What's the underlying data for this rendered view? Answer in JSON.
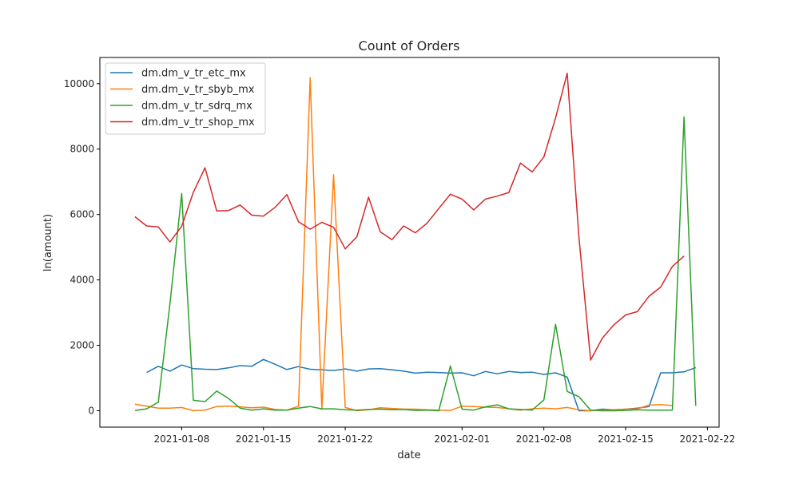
{
  "chart_data": {
    "type": "line",
    "title": "Count of Orders",
    "xlabel": "date",
    "ylabel": "ln(amount)",
    "x_start_date": "2021-01-04",
    "xlim": [
      "2021-01-01",
      "2021-02-23"
    ],
    "ylim": [
      -500,
      10800
    ],
    "x_ticks": [
      "2021-01-08",
      "2021-01-15",
      "2021-01-22",
      "2021-02-01",
      "2021-02-08",
      "2021-02-15",
      "2021-02-22"
    ],
    "y_ticks": [
      0,
      2000,
      4000,
      6000,
      8000,
      10000
    ],
    "grid": false,
    "legend_position": "top-left",
    "series": [
      {
        "name": "dm.dm_v_tr_etc_mx",
        "color": "#1f77b4",
        "start_date": "2021-01-05",
        "values": [
          1170,
          1360,
          1210,
          1400,
          1290,
          1270,
          1260,
          1310,
          1380,
          1360,
          1570,
          1420,
          1260,
          1350,
          1270,
          1250,
          1230,
          1280,
          1210,
          1280,
          1290,
          1250,
          1210,
          1150,
          1180,
          1170,
          1150,
          1160,
          1070,
          1200,
          1130,
          1200,
          1170,
          1180,
          1110,
          1160,
          1030,
          0,
          0,
          50,
          30,
          50,
          80,
          130,
          1160,
          1160,
          1190,
          1320
        ]
      },
      {
        "name": "dm.dm_v_tr_sbyb_mx",
        "color": "#ff7f0e",
        "start_date": "2021-01-04",
        "values": [
          200,
          140,
          80,
          80,
          100,
          0,
          20,
          130,
          140,
          120,
          90,
          110,
          40,
          20,
          140,
          10180,
          40,
          7220,
          100,
          0,
          30,
          90,
          70,
          50,
          50,
          30,
          20,
          10,
          140,
          130,
          110,
          100,
          60,
          20,
          60,
          80,
          60,
          100,
          30,
          0,
          20,
          30,
          50,
          60,
          170,
          190,
          160
        ]
      },
      {
        "name": "dm.dm_v_tr_sdrq_mx",
        "color": "#2ca02c",
        "start_date": "2021-01-04",
        "values": [
          10,
          60,
          260,
          3270,
          6640,
          320,
          280,
          600,
          380,
          80,
          20,
          60,
          20,
          20,
          80,
          130,
          60,
          60,
          30,
          20,
          40,
          50,
          30,
          40,
          10,
          20,
          0,
          1370,
          50,
          20,
          120,
          180,
          60,
          40,
          20,
          330,
          2640,
          590,
          430,
          20,
          0,
          0,
          10,
          30,
          20,
          20,
          20,
          8980,
          150
        ]
      },
      {
        "name": "dm.dm_v_tr_shop_mx",
        "color": "#d62728",
        "start_date": "2021-01-04",
        "values": [
          5930,
          5650,
          5620,
          5160,
          5640,
          6680,
          7430,
          6110,
          6120,
          6290,
          5980,
          5950,
          6220,
          6610,
          5780,
          5550,
          5760,
          5610,
          4950,
          5320,
          6530,
          5470,
          5230,
          5650,
          5440,
          5730,
          6180,
          6620,
          6470,
          6140,
          6470,
          6560,
          6670,
          7570,
          7300,
          7760,
          8950,
          10320,
          5320,
          1550,
          2220,
          2630,
          2930,
          3030,
          3500,
          3780,
          4410,
          4730
        ]
      }
    ]
  }
}
